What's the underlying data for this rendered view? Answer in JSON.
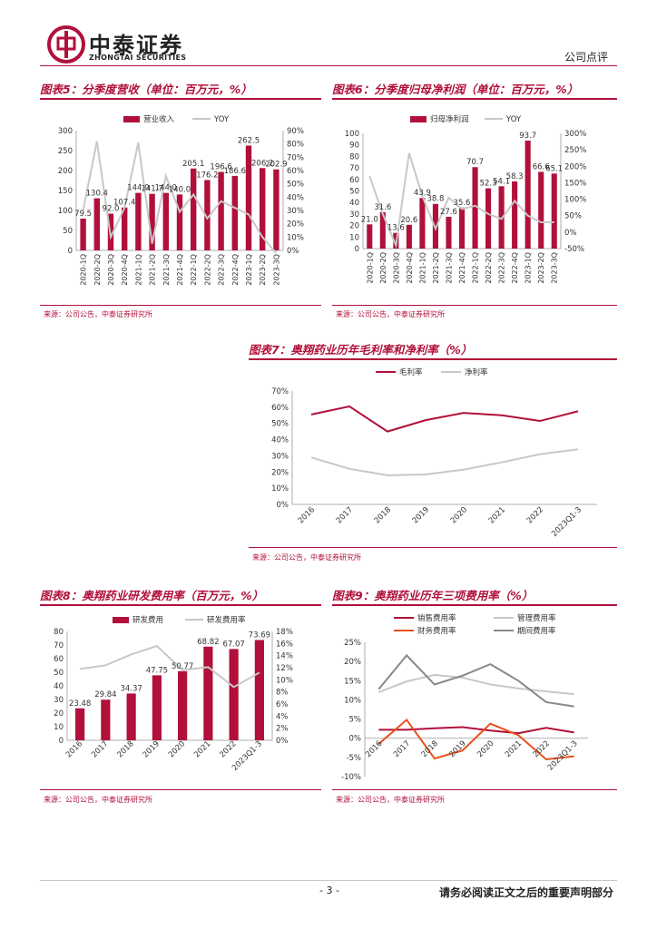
{
  "header": {
    "logo_cn": "中泰证券",
    "logo_en": "ZHONGTAI SECURITIES",
    "doc_type": "公司点评"
  },
  "footer": {
    "page": "- 3 -",
    "disclaimer": "请务必阅读正文之后的重要声明部分"
  },
  "colors": {
    "red": "#b0103a",
    "gray": "#c8c8c8",
    "dark_gray": "#888888",
    "orange": "#e8501c"
  },
  "chart_data": [
    {
      "id": "fig5",
      "type": "bar-line",
      "title": "图表5：分季度营收（单位：百万元，%）",
      "source": "来源：公司公告，中泰证券研究所",
      "legend": [
        "营业收入",
        "YOY"
      ],
      "legend_position": "top",
      "categories": [
        "2020-1Q",
        "2020-2Q",
        "2020-3Q",
        "2020-4Q",
        "2021-1Q",
        "2021-2Q",
        "2021-3Q",
        "2021-4Q",
        "2022-1Q",
        "2022-2Q",
        "2022-3Q",
        "2022-4Q",
        "2023-1Q",
        "2023-2Q",
        "2023-3Q"
      ],
      "bar_values": [
        79.5,
        130.4,
        92.0,
        107.4,
        144.0,
        141.7,
        144.0,
        140.0,
        205.1,
        176.2,
        196.6,
        186.6,
        262.5,
        206.2,
        202.9
      ],
      "bar_labels": [
        "79.5",
        "130.4",
        "92.0",
        "107.4",
        "144.0",
        "141.7",
        "144.0",
        "140.0",
        "205.1",
        "176.2",
        "196.6",
        "186.6",
        "262.5",
        "206.2",
        "202.9"
      ],
      "line_values": [
        30,
        82,
        10,
        32,
        81,
        5,
        56,
        29,
        42,
        24,
        37,
        32,
        27,
        10,
        -2
      ],
      "y_left": {
        "min": 0,
        "max": 300,
        "step": 50,
        "ticks": [
          "0",
          "50",
          "100",
          "150",
          "200",
          "250",
          "300"
        ]
      },
      "y_right": {
        "min": 0,
        "max": 90,
        "step": 10,
        "ticks": [
          "0%",
          "10%",
          "20%",
          "30%",
          "40%",
          "50%",
          "60%",
          "70%",
          "80%",
          "90%"
        ]
      }
    },
    {
      "id": "fig6",
      "type": "bar-line",
      "title": "图表6：分季度归母净利润（单位：百万元，%）",
      "source": "来源：公司公告，中泰证券研究所",
      "legend": [
        "归母净利润",
        "YOY"
      ],
      "legend_position": "top",
      "categories": [
        "2020-1Q",
        "2020-2Q",
        "2020-3Q",
        "2020-4Q",
        "2021-1Q",
        "2021-2Q",
        "2021-3Q",
        "2021-4Q",
        "2022-1Q",
        "2022-2Q",
        "2022-3Q",
        "2022-4Q",
        "2023-1Q",
        "2023-2Q",
        "2023-3Q"
      ],
      "bar_values": [
        21.0,
        31.6,
        13.6,
        20.6,
        43.9,
        38.8,
        27.6,
        35.6,
        70.7,
        52.3,
        54.1,
        58.3,
        93.7,
        66.6,
        65.1
      ],
      "bar_labels": [
        "21.0",
        "31.6",
        "13.6",
        "20.6",
        "43.9",
        "38.8",
        "27.6",
        "35.6",
        "70.7",
        "52.3",
        "54.1",
        "58.3",
        "93.7",
        "66.6",
        "65.1"
      ],
      "line_values": [
        170,
        55,
        -40,
        240,
        110,
        10,
        105,
        70,
        80,
        55,
        40,
        95,
        50,
        30,
        30
      ],
      "y_left": {
        "min": 0,
        "max": 100,
        "step": 10,
        "ticks": [
          "0",
          "10",
          "20",
          "30",
          "40",
          "50",
          "60",
          "70",
          "80",
          "90",
          "100"
        ]
      },
      "y_right": {
        "min": -50,
        "max": 300,
        "step": 50,
        "ticks": [
          "-50%",
          "0%",
          "50%",
          "100%",
          "150%",
          "200%",
          "250%",
          "300%"
        ]
      }
    },
    {
      "id": "fig7",
      "type": "line",
      "title": "图表7：奥翔药业历年毛利率和净利率（%）",
      "source": "来源：公司公告，中泰证券研究所",
      "legend_position": "top",
      "categories": [
        "2016",
        "2017",
        "2018",
        "2019",
        "2020",
        "2021",
        "2022",
        "2023Q1-3"
      ],
      "series": [
        {
          "name": "毛利率",
          "color": "#b0103a",
          "values": [
            55.5,
            60.5,
            45,
            52,
            56.5,
            55,
            51.5,
            57.5
          ]
        },
        {
          "name": "净利率",
          "color": "#c8c8c8",
          "values": [
            29,
            22,
            18,
            18.5,
            21.5,
            26,
            31,
            34
          ]
        }
      ],
      "y": {
        "min": 0,
        "max": 70,
        "step": 10,
        "ticks": [
          "0%",
          "10%",
          "20%",
          "30%",
          "40%",
          "50%",
          "60%",
          "70%"
        ]
      }
    },
    {
      "id": "fig8",
      "type": "bar-line",
      "title": "图表8：奥翔药业研发费用率（百万元，%）",
      "source": "来源：公司公告，中泰证券研究所",
      "legend": [
        "研发费用",
        "研发费用率"
      ],
      "legend_position": "top",
      "categories": [
        "2016",
        "2017",
        "2018",
        "2019",
        "2020",
        "2021",
        "2022",
        "2023Q1-3"
      ],
      "bar_values": [
        23.48,
        29.84,
        34.37,
        47.75,
        50.77,
        68.82,
        67.07,
        73.69
      ],
      "bar_labels": [
        "23.48",
        "29.84",
        "34.37",
        "47.75",
        "50.77",
        "68.82",
        "67.07",
        "73.69"
      ],
      "line_values": [
        11.8,
        12.4,
        14.2,
        15.6,
        11.6,
        12.1,
        8.8,
        11.2
      ],
      "y_left": {
        "min": 0,
        "max": 80,
        "step": 10,
        "ticks": [
          "0",
          "10",
          "20",
          "30",
          "40",
          "50",
          "60",
          "70",
          "80"
        ]
      },
      "y_right": {
        "min": 0,
        "max": 18,
        "step": 2,
        "ticks": [
          "0%",
          "2%",
          "4%",
          "6%",
          "8%",
          "10%",
          "12%",
          "14%",
          "16%",
          "18%"
        ]
      }
    },
    {
      "id": "fig9",
      "type": "line",
      "title": "图表9：奥翔药业历年三项费用率（%）",
      "source": "来源：公司公告，中泰证券研究所",
      "legend_position": "top",
      "categories": [
        "2016",
        "2017",
        "2018",
        "2019",
        "2020",
        "2021",
        "2022",
        "2023Q1-3"
      ],
      "series": [
        {
          "name": "销售费用率",
          "color": "#b0103a",
          "values": [
            2.2,
            2.2,
            2.6,
            2.9,
            2.0,
            1.3,
            2.7,
            1.5
          ]
        },
        {
          "name": "管理费用率",
          "color": "#c8c8c8",
          "values": [
            12.0,
            14.8,
            16.5,
            15.8,
            14.0,
            13.0,
            12.2,
            11.5
          ]
        },
        {
          "name": "财务费用率",
          "color": "#e8501c",
          "values": [
            -1.5,
            4.8,
            -5.3,
            -3.2,
            3.8,
            0.8,
            -5.5,
            -4.7
          ]
        },
        {
          "name": "期间费用率",
          "color": "#888888",
          "values": [
            12.8,
            21.6,
            14.0,
            16.3,
            19.3,
            15.0,
            9.4,
            8.3
          ]
        }
      ],
      "y": {
        "min": -10,
        "max": 25,
        "step": 5,
        "ticks": [
          "-10%",
          "-5%",
          "0%",
          "5%",
          "10%",
          "15%",
          "20%",
          "25%"
        ]
      }
    }
  ]
}
